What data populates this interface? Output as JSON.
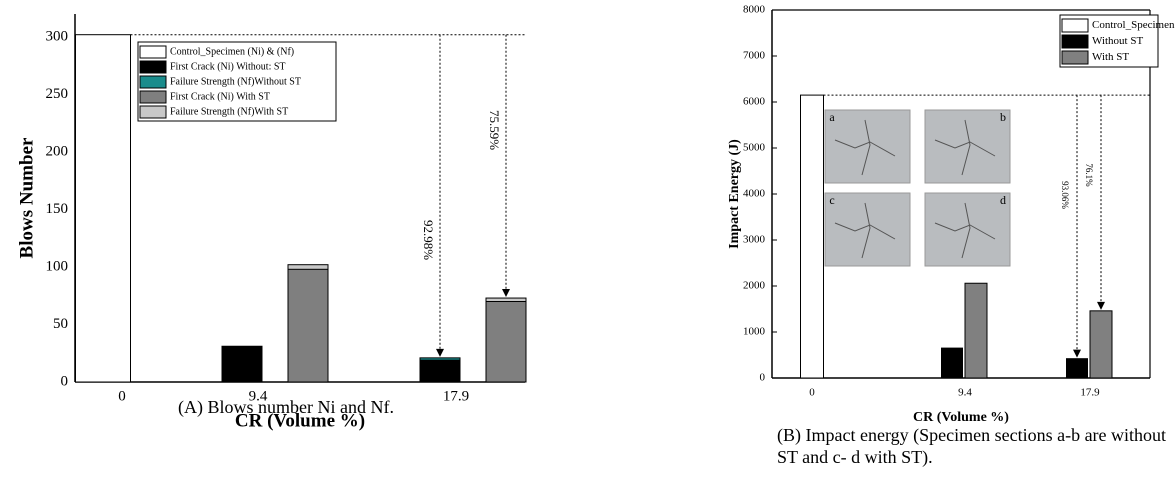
{
  "chart_data": [
    {
      "type": "bar",
      "y_label": "Blows Number",
      "x_label": "CR (Volume %)",
      "caption": "(A) Blows number Ni and Nf.",
      "categories": [
        "0",
        "9.4",
        "17.9"
      ],
      "series": [
        {
          "name": "Control_Specimen (Ni) & (Nf)",
          "color": "#ffffff",
          "values": [
            302,
            null,
            null
          ]
        },
        {
          "name": "First Crack (Ni) Without: ST",
          "color": "#000000",
          "values": [
            null,
            31,
            19
          ]
        },
        {
          "name": "Failure Strength (Nf)Without ST",
          "color": "#1a8c8c",
          "values": [
            null,
            31,
            21
          ]
        },
        {
          "name": "First Crack (Ni) With ST",
          "color": "#7f7f7f",
          "values": [
            null,
            98,
            70
          ]
        },
        {
          "name": "Failure Strength (Nf)With ST",
          "color": "#c8c8c8",
          "values": [
            null,
            102,
            73
          ]
        }
      ],
      "annotations": [
        "92.98%",
        "75.59%"
      ],
      "ylim": [
        0,
        320
      ],
      "yticks": [
        0,
        50,
        100,
        150,
        200,
        250,
        300
      ]
    },
    {
      "type": "bar",
      "y_label": "Impact Energy (J)",
      "x_label": "CR (Volume %)",
      "caption": "(B) Impact energy (Specimen sections a-b are without ST and c- d with ST).",
      "categories": [
        "0",
        "9.4",
        "17.9"
      ],
      "series": [
        {
          "name": "Control_Specimen",
          "color": "#ffffff",
          "values": [
            6150,
            null,
            null
          ]
        },
        {
          "name": "Without ST",
          "color": "#000000",
          "values": [
            null,
            650,
            420
          ]
        },
        {
          "name": "With ST",
          "color": "#808080",
          "values": [
            null,
            2060,
            1460
          ]
        }
      ],
      "annotations": [
        "93.06%",
        "76.1%"
      ],
      "inset_labels": [
        "a",
        "b",
        "c",
        "d"
      ],
      "ylim": [
        0,
        8000
      ],
      "yticks": [
        0,
        1000,
        2000,
        3000,
        4000,
        5000,
        6000,
        7000,
        8000
      ]
    }
  ]
}
